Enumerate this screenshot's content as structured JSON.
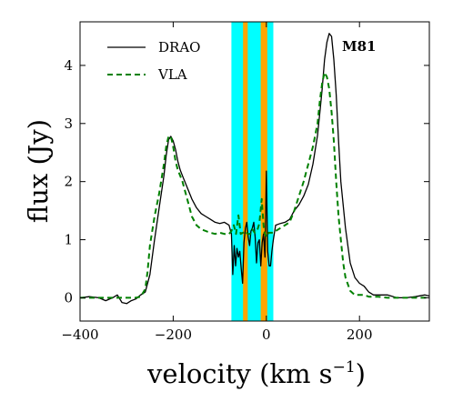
{
  "chart_data": {
    "type": "line",
    "title": "",
    "xlabel": "velocity (km s⁻¹)",
    "ylabel": "flux (Jy)",
    "xlim": [
      -400,
      350
    ],
    "ylim": [
      -0.4,
      4.75
    ],
    "xticks": [
      -400,
      -200,
      0,
      200
    ],
    "xtick_labels": [
      "−400",
      "−200",
      "0",
      "200"
    ],
    "yticks": [
      0,
      1,
      2,
      3,
      4
    ],
    "ytick_labels": [
      "0",
      "1",
      "2",
      "3",
      "4"
    ],
    "grid": false,
    "legend_position": "top-left",
    "annotation": "M81",
    "bands": [
      {
        "range": [
          -75,
          15
        ],
        "color": "#00ffff",
        "role": "outer-band"
      },
      {
        "range": [
          -50,
          -40
        ],
        "color": "#ffa500",
        "role": "narrow-band"
      },
      {
        "range": [
          -12,
          2
        ],
        "color": "#ffa500",
        "role": "narrow-band"
      }
    ],
    "series": [
      {
        "name": "DRAO",
        "color": "#000000",
        "style": "solid",
        "x": [
          -400,
          -380,
          -360,
          -345,
          -330,
          -320,
          -310,
          -300,
          -290,
          -280,
          -270,
          -260,
          -250,
          -240,
          -230,
          -220,
          -215,
          -210,
          -205,
          -200,
          -195,
          -190,
          -185,
          -180,
          -170,
          -160,
          -150,
          -140,
          -130,
          -120,
          -110,
          -100,
          -90,
          -80,
          -75,
          -72,
          -69,
          -66,
          -63,
          -60,
          -57,
          -54,
          -51,
          -48,
          -45,
          -42,
          -39,
          -36,
          -33,
          -30,
          -27,
          -24,
          -21,
          -18,
          -15,
          -12,
          -9,
          -6,
          -3,
          0,
          3,
          6,
          9,
          12,
          15,
          20,
          30,
          40,
          50,
          60,
          70,
          80,
          90,
          100,
          110,
          115,
          120,
          125,
          130,
          135,
          140,
          145,
          150,
          155,
          160,
          170,
          180,
          190,
          200,
          210,
          220,
          230,
          240,
          260,
          280,
          300,
          320,
          340,
          350
        ],
        "y": [
          0.0,
          0.02,
          0.0,
          -0.05,
          0.0,
          0.05,
          -0.08,
          -0.1,
          -0.05,
          -0.02,
          0.05,
          0.1,
          0.4,
          1.0,
          1.55,
          2.1,
          2.45,
          2.72,
          2.78,
          2.7,
          2.55,
          2.35,
          2.2,
          2.1,
          1.9,
          1.7,
          1.55,
          1.45,
          1.4,
          1.35,
          1.3,
          1.28,
          1.3,
          1.25,
          1.1,
          0.4,
          0.9,
          0.55,
          0.85,
          0.7,
          0.8,
          0.5,
          0.25,
          0.95,
          1.2,
          1.3,
          1.05,
          0.9,
          1.15,
          1.2,
          1.3,
          1.05,
          0.6,
          0.95,
          1.0,
          0.55,
          0.95,
          1.1,
          0.7,
          2.18,
          0.8,
          0.55,
          0.55,
          0.8,
          1.0,
          1.25,
          1.28,
          1.3,
          1.35,
          1.5,
          1.6,
          1.75,
          1.95,
          2.3,
          2.8,
          3.2,
          3.6,
          4.1,
          4.4,
          4.55,
          4.5,
          4.1,
          3.5,
          2.7,
          2.0,
          1.2,
          0.6,
          0.35,
          0.25,
          0.2,
          0.1,
          0.05,
          0.05,
          0.05,
          0.0,
          0.0,
          0.02,
          0.05,
          0.03
        ]
      },
      {
        "name": "VLA",
        "color": "#008000",
        "style": "dashed",
        "x": [
          -400,
          -380,
          -360,
          -340,
          -320,
          -300,
          -290,
          -280,
          -270,
          -260,
          -255,
          -250,
          -240,
          -230,
          -220,
          -215,
          -210,
          -205,
          -200,
          -195,
          -190,
          -185,
          -180,
          -170,
          -160,
          -150,
          -140,
          -130,
          -120,
          -110,
          -100,
          -90,
          -80,
          -75,
          -70,
          -65,
          -60,
          -55,
          -50,
          -45,
          -40,
          -35,
          -30,
          -25,
          -20,
          -15,
          -10,
          -5,
          0,
          5,
          10,
          15,
          20,
          30,
          40,
          50,
          60,
          70,
          80,
          90,
          100,
          110,
          115,
          120,
          125,
          130,
          135,
          140,
          145,
          150,
          155,
          160,
          165,
          170,
          180,
          190,
          200,
          210,
          220,
          240,
          260,
          280,
          300,
          320,
          340,
          350
        ],
        "y": [
          0.0,
          0.0,
          0.0,
          0.0,
          0.0,
          0.0,
          0.0,
          0.0,
          0.02,
          0.15,
          0.45,
          0.9,
          1.4,
          1.8,
          2.3,
          2.6,
          2.78,
          2.78,
          2.6,
          2.35,
          2.2,
          2.1,
          2.0,
          1.7,
          1.4,
          1.25,
          1.18,
          1.15,
          1.12,
          1.1,
          1.12,
          1.1,
          1.1,
          1.15,
          1.25,
          1.1,
          1.42,
          1.1,
          1.12,
          1.15,
          1.1,
          1.1,
          1.18,
          1.12,
          1.15,
          1.28,
          1.7,
          1.15,
          1.05,
          1.12,
          1.12,
          1.12,
          1.15,
          1.2,
          1.25,
          1.3,
          1.5,
          1.75,
          2.0,
          2.3,
          2.6,
          3.0,
          3.4,
          3.7,
          3.88,
          3.8,
          3.6,
          3.2,
          2.7,
          2.0,
          1.4,
          1.0,
          0.6,
          0.35,
          0.12,
          0.05,
          0.05,
          0.05,
          0.02,
          0.02,
          0.0,
          0.0,
          0.0,
          0.0,
          0.0,
          0.0
        ]
      }
    ]
  }
}
